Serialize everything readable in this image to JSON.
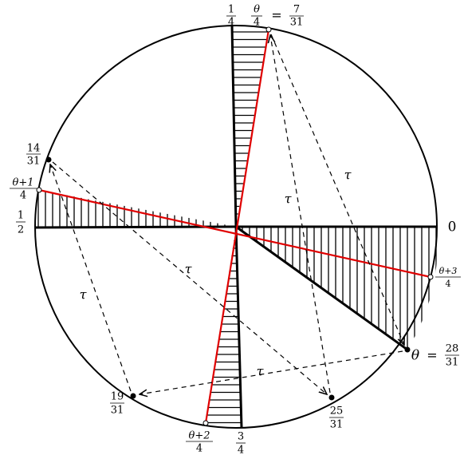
{
  "points": [
    {
      "label": "0"
    },
    {
      "num": "1",
      "den": "4"
    },
    {
      "lhs": {
        "num": "θ",
        "den": "4"
      },
      "sign": "=",
      "rhs": {
        "num": "7",
        "den": "31"
      }
    },
    {
      "num": "14",
      "den": "31"
    },
    {
      "num": "θ+1",
      "den": "4"
    },
    {
      "num": "1",
      "den": "2"
    },
    {
      "num": "19",
      "den": "31"
    },
    {
      "num": "θ+2",
      "den": "4"
    },
    {
      "num": "3",
      "den": "4"
    },
    {
      "num": "25",
      "den": "31"
    },
    {
      "lhs": "θ",
      "sign": "=",
      "rhs": {
        "num": "28",
        "den": "31"
      }
    },
    {
      "num": "θ+3",
      "den": "4"
    }
  ],
  "arrow_labels": [
    "τ",
    "τ",
    "τ",
    "τ",
    "τ"
  ]
}
